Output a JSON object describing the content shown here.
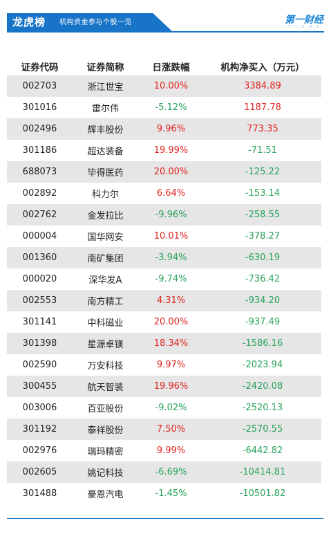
{
  "header": {
    "title": "龙虎榜",
    "subtitle": "机构资金参与个股一览",
    "logo_text": "第一财经",
    "logo_sub": "Y I C A I"
  },
  "table": {
    "columns": [
      "证券代码",
      "证券简称",
      "日涨跌幅",
      "机构净买入（万元）"
    ],
    "rows": [
      {
        "code": "002703",
        "name": "浙江世宝",
        "change": "10.00%",
        "net": "3384.89",
        "change_dir": "up",
        "net_dir": "up"
      },
      {
        "code": "301016",
        "name": "雷尔伟",
        "change": "-5.12%",
        "net": "1187.78",
        "change_dir": "down",
        "net_dir": "up"
      },
      {
        "code": "002496",
        "name": "辉丰股份",
        "change": "9.96%",
        "net": "773.35",
        "change_dir": "up",
        "net_dir": "up"
      },
      {
        "code": "301186",
        "name": "超达装备",
        "change": "19.99%",
        "net": "-71.51",
        "change_dir": "up",
        "net_dir": "down"
      },
      {
        "code": "688073",
        "name": "毕得医药",
        "change": "20.00%",
        "net": "-125.22",
        "change_dir": "up",
        "net_dir": "down"
      },
      {
        "code": "002892",
        "name": "科力尔",
        "change": "6.64%",
        "net": "-153.14",
        "change_dir": "up",
        "net_dir": "down"
      },
      {
        "code": "002762",
        "name": "金发拉比",
        "change": "-9.96%",
        "net": "-258.55",
        "change_dir": "down",
        "net_dir": "down"
      },
      {
        "code": "000004",
        "name": "国华网安",
        "change": "10.01%",
        "net": "-378.27",
        "change_dir": "up",
        "net_dir": "down"
      },
      {
        "code": "001360",
        "name": "南矿集团",
        "change": "-3.94%",
        "net": "-630.19",
        "change_dir": "down",
        "net_dir": "down"
      },
      {
        "code": "000020",
        "name": "深华发A",
        "change": "-9.74%",
        "net": "-736.42",
        "change_dir": "down",
        "net_dir": "down"
      },
      {
        "code": "002553",
        "name": "南方精工",
        "change": "4.31%",
        "net": "-934.20",
        "change_dir": "up",
        "net_dir": "down"
      },
      {
        "code": "301141",
        "name": "中科磁业",
        "change": "20.00%",
        "net": "-937.49",
        "change_dir": "up",
        "net_dir": "down"
      },
      {
        "code": "301398",
        "name": "星源卓镁",
        "change": "18.34%",
        "net": "-1586.16",
        "change_dir": "up",
        "net_dir": "down"
      },
      {
        "code": "002590",
        "name": "万安科技",
        "change": "9.97%",
        "net": "-2023.94",
        "change_dir": "up",
        "net_dir": "down"
      },
      {
        "code": "300455",
        "name": "航天智装",
        "change": "19.96%",
        "net": "-2420.08",
        "change_dir": "up",
        "net_dir": "down"
      },
      {
        "code": "003006",
        "name": "百亚股份",
        "change": "-9.02%",
        "net": "-2520.13",
        "change_dir": "down",
        "net_dir": "down"
      },
      {
        "code": "301192",
        "name": "泰祥股份",
        "change": "7.50%",
        "net": "-2570.55",
        "change_dir": "up",
        "net_dir": "down"
      },
      {
        "code": "002976",
        "name": "瑞玛精密",
        "change": "9.99%",
        "net": "-6442.82",
        "change_dir": "up",
        "net_dir": "down"
      },
      {
        "code": "002605",
        "name": "姚记科技",
        "change": "-6.69%",
        "net": "-10414.81",
        "change_dir": "down",
        "net_dir": "down"
      },
      {
        "code": "301488",
        "name": "豪恩汽电",
        "change": "-1.45%",
        "net": "-10501.82",
        "change_dir": "down",
        "net_dir": "down"
      }
    ]
  },
  "colors": {
    "brand_blue": "#1874c7",
    "up_red": "#e0231f",
    "down_green": "#27a35b",
    "stripe_gray": "#e6e6e6"
  }
}
